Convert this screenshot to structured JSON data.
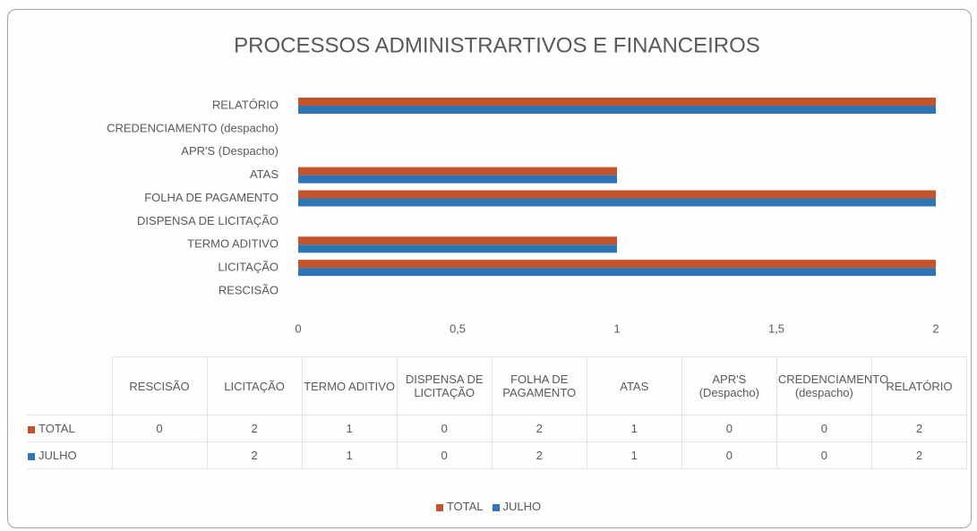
{
  "chart_data": {
    "type": "barh",
    "title": "PROCESSOS ADMINISTRARTIVOS E FINANCEIROS",
    "categories": [
      "RESCISÃO",
      "LICITAÇÃO",
      "TERMO ADITIVO",
      "DISPENSA DE LICITAÇÃO",
      "FOLHA DE PAGAMENTO",
      "ATAS",
      "APR'S (Despacho)",
      "CREDENCIAMENTO (despacho)",
      "RELATÓRIO"
    ],
    "series": [
      {
        "name": "TOTAL",
        "color": "#c4532b",
        "values": [
          0,
          2,
          1,
          0,
          2,
          1,
          0,
          0,
          2
        ]
      },
      {
        "name": "JULHO",
        "color": "#2e75b6",
        "values": [
          null,
          2,
          1,
          0,
          2,
          1,
          0,
          0,
          2
        ]
      }
    ],
    "xlim": [
      0,
      2
    ],
    "xticks": [
      0,
      {
        "value": 0.5,
        "label": "0,5"
      },
      1,
      {
        "value": 1.5,
        "label": "1,5"
      },
      2
    ],
    "grid": false,
    "legend": "bottom",
    "data_table": true
  }
}
